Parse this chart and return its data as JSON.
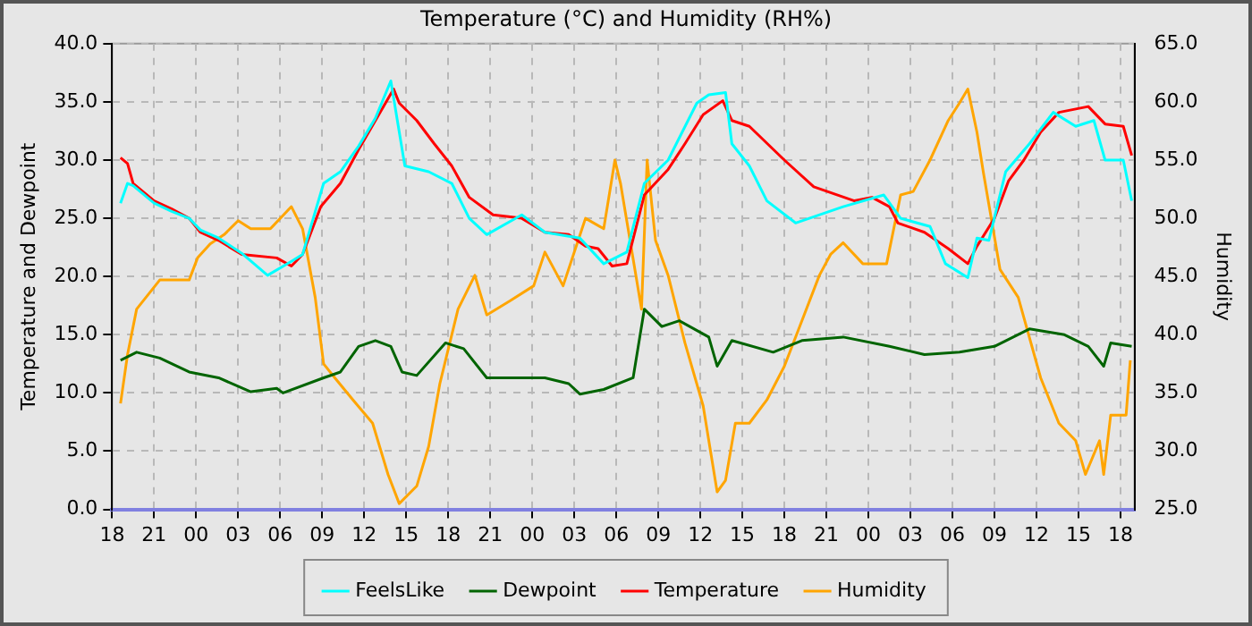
{
  "chart_data": {
    "type": "line",
    "title": "Temperature (°C) and Humidity (RH%)",
    "ylabel": "Temperature and Dewpoint",
    "y2label": "Humidity",
    "xlim": [
      18,
      91
    ],
    "xticks": [
      18,
      21,
      {
        "value": 24,
        "label": "00"
      },
      {
        "value": 27,
        "label": "03"
      },
      {
        "value": 30,
        "label": "06"
      },
      {
        "value": 33,
        "label": "09"
      },
      {
        "value": 36,
        "label": "12"
      },
      {
        "value": 39,
        "label": "15"
      },
      {
        "value": 42,
        "label": "18"
      },
      {
        "value": 45,
        "label": "21"
      },
      {
        "value": 48,
        "label": "00"
      },
      {
        "value": 51,
        "label": "03"
      },
      {
        "value": 54,
        "label": "06"
      },
      {
        "value": 57,
        "label": "09"
      },
      {
        "value": 60,
        "label": "12"
      },
      {
        "value": 63,
        "label": "15"
      },
      {
        "value": 66,
        "label": "18"
      },
      {
        "value": 69,
        "label": "21"
      },
      {
        "value": 72,
        "label": "00"
      },
      {
        "value": 75,
        "label": "03"
      },
      {
        "value": 78,
        "label": "06"
      },
      {
        "value": 81,
        "label": "09"
      },
      {
        "value": 84,
        "label": "12"
      },
      {
        "value": 87,
        "label": "15"
      },
      {
        "value": 90,
        "label": "18"
      }
    ],
    "ylim": [
      0,
      40
    ],
    "yticks": [
      {
        "value": 0,
        "label": "0.0"
      },
      {
        "value": 5,
        "label": "5.0"
      },
      {
        "value": 10,
        "label": "10.0"
      },
      {
        "value": 15,
        "label": "15.0"
      },
      {
        "value": 20,
        "label": "20.0"
      },
      {
        "value": 25,
        "label": "25.0"
      },
      {
        "value": 30,
        "label": "30.0"
      },
      {
        "value": 35,
        "label": "35.0"
      },
      {
        "value": 40,
        "label": "40.0"
      }
    ],
    "y2lim": [
      25,
      65
    ],
    "y2ticks": [
      {
        "value": 25,
        "label": "25.0"
      },
      {
        "value": 30,
        "label": "30.0"
      },
      {
        "value": 35,
        "label": "35.0"
      },
      {
        "value": 40,
        "label": "40.0"
      },
      {
        "value": 45,
        "label": "45.0"
      },
      {
        "value": 50,
        "label": "50.0"
      },
      {
        "value": 55,
        "label": "55.0"
      },
      {
        "value": 60,
        "label": "60.0"
      },
      {
        "value": 65,
        "label": "65.0"
      }
    ],
    "grid": true,
    "legend": "bottom",
    "marker": "none",
    "line_style": "solid",
    "series": [
      {
        "name": "FeelsLike",
        "color": "#00ffff",
        "x": [
          18.6,
          19.1,
          19.5,
          21,
          22.25,
          23.5,
          24.3,
          25.6,
          27.25,
          29.1,
          30.8,
          31.6,
          33.1,
          34.3,
          35.6,
          36.8,
          37.9,
          38.9,
          40.6,
          42.25,
          43.5,
          44.75,
          47.25,
          48.9,
          51.4,
          53.1,
          54.75,
          56,
          57.7,
          59.75,
          60.6,
          61.8,
          62.25,
          63.5,
          64.75,
          66.8,
          70.2,
          73.1,
          74.3,
          76.4,
          77.5,
          79.1,
          79.75,
          80.6,
          81.8,
          83.5,
          85.2,
          86.8,
          88.1,
          88.9,
          90.2,
          90.8
        ],
        "values": [
          26.3,
          28.0,
          27.8,
          26.3,
          25.6,
          25.0,
          24.0,
          23.3,
          22.0,
          20.1,
          21.3,
          21.9,
          28.0,
          29.0,
          31.2,
          33.6,
          36.8,
          29.5,
          29.0,
          28.0,
          25.0,
          23.6,
          25.3,
          23.8,
          23.3,
          21.1,
          22.1,
          28.0,
          30.0,
          34.9,
          35.6,
          35.8,
          31.4,
          29.5,
          26.5,
          24.6,
          26.0,
          27.0,
          25.0,
          24.3,
          21.1,
          19.9,
          23.3,
          23.1,
          29.0,
          31.4,
          34.1,
          32.9,
          33.4,
          30.0,
          30.0,
          26.5
        ]
      },
      {
        "name": "Dewpoint",
        "color": "#006400",
        "x": [
          18.6,
          19.75,
          21.4,
          23.5,
          25.6,
          27.9,
          29.75,
          30.2,
          33.1,
          34.3,
          35.6,
          36.8,
          37.9,
          38.7,
          39.75,
          41.8,
          43.1,
          44.75,
          46.4,
          48.9,
          50.6,
          51.4,
          53.1,
          55.2,
          56,
          57.25,
          58.5,
          60.6,
          61.2,
          62.25,
          65.2,
          67.25,
          70.2,
          73.5,
          76,
          78.5,
          81,
          83.5,
          86,
          87.7,
          88.8,
          89.3,
          90.8
        ],
        "values": [
          12.8,
          13.5,
          13.0,
          11.8,
          11.3,
          10.1,
          10.4,
          10.0,
          11.3,
          11.8,
          14.0,
          14.5,
          14.0,
          11.8,
          11.5,
          14.3,
          13.8,
          11.3,
          11.3,
          11.3,
          10.8,
          9.9,
          10.3,
          11.3,
          17.2,
          15.7,
          16.2,
          14.8,
          12.3,
          14.5,
          13.5,
          14.5,
          14.8,
          14.0,
          13.3,
          13.5,
          14.0,
          15.5,
          15.0,
          14.0,
          12.3,
          14.3,
          14.0
        ]
      },
      {
        "name": "Temperature",
        "color": "#ff0000",
        "x": [
          18.6,
          19.1,
          19.5,
          21,
          22.25,
          23.5,
          24.3,
          25.6,
          27.25,
          29.75,
          30.8,
          31.6,
          32.9,
          34.3,
          35.6,
          36.8,
          38.1,
          38.5,
          39.75,
          41,
          42.25,
          43.5,
          45.2,
          47.25,
          48.9,
          50.6,
          51.8,
          52.7,
          53.7,
          54.75,
          56,
          57.7,
          58.9,
          60.2,
          61.6,
          62.25,
          63.5,
          66,
          68.1,
          71,
          72.25,
          73.5,
          74.1,
          76,
          77.7,
          79.1,
          79.75,
          81,
          82,
          83.1,
          84.3,
          85.6,
          87.7,
          88.9,
          90.2,
          90.8
        ],
        "values": [
          30.2,
          29.7,
          28.0,
          26.5,
          25.8,
          25.0,
          23.8,
          23.1,
          21.9,
          21.6,
          20.9,
          21.9,
          26.0,
          28.0,
          30.9,
          33.4,
          36.1,
          34.9,
          33.4,
          31.4,
          29.5,
          26.8,
          25.3,
          25.0,
          23.8,
          23.6,
          22.6,
          22.4,
          20.9,
          21.1,
          27.0,
          29.2,
          31.4,
          33.9,
          35.1,
          33.4,
          32.9,
          30.0,
          27.7,
          26.5,
          26.8,
          26.0,
          24.6,
          23.8,
          22.4,
          21.1,
          22.6,
          25.0,
          28.2,
          30.0,
          32.4,
          34.1,
          34.6,
          33.1,
          32.9,
          30.4
        ]
      },
      {
        "name": "Humidity",
        "color": "#ffa500",
        "axis": "y2",
        "x": [
          18.6,
          19.1,
          19.75,
          21.4,
          23.5,
          24.1,
          25,
          26,
          27,
          27.9,
          29.3,
          30.8,
          31.6,
          32.5,
          33.1,
          33.9,
          35.2,
          36.6,
          37.7,
          38.5,
          39.75,
          40.6,
          41.4,
          42.7,
          43.9,
          44.75,
          46.4,
          48.1,
          48.9,
          50.2,
          51.8,
          53.1,
          53.9,
          54.3,
          55.8,
          56.2,
          56.8,
          57.7,
          58.9,
          60.2,
          61.2,
          61.8,
          62.5,
          63.5,
          64.75,
          66,
          67.25,
          68.5,
          69.3,
          70.2,
          71.6,
          73.3,
          74.3,
          75.2,
          76.4,
          77.7,
          78.5,
          79.1,
          79.75,
          80.2,
          81.4,
          82.7,
          84.3,
          85.6,
          86.8,
          87.5,
          88.5,
          88.8,
          89.3,
          90.4,
          90.7
        ],
        "values": [
          34.1,
          38.3,
          42.2,
          44.7,
          44.7,
          46.6,
          47.8,
          48.6,
          49.8,
          49.1,
          49.1,
          51.0,
          49.1,
          43.2,
          37.5,
          36.3,
          34.4,
          32.4,
          28.0,
          25.5,
          27.0,
          30.4,
          35.8,
          42.2,
          45.1,
          41.7,
          42.9,
          44.2,
          47.1,
          44.2,
          50.0,
          49.1,
          55.0,
          53.0,
          42.2,
          55.0,
          48.1,
          45.1,
          39.3,
          33.9,
          26.5,
          27.5,
          32.4,
          32.4,
          34.4,
          37.3,
          41.2,
          45.1,
          46.9,
          47.9,
          46.1,
          46.1,
          52.0,
          52.3,
          55.0,
          58.4,
          59.9,
          61.1,
          57.4,
          54.0,
          45.6,
          43.2,
          36.3,
          32.4,
          30.9,
          28.0,
          30.9,
          28.0,
          33.1,
          33.1,
          37.8
        ]
      }
    ]
  }
}
